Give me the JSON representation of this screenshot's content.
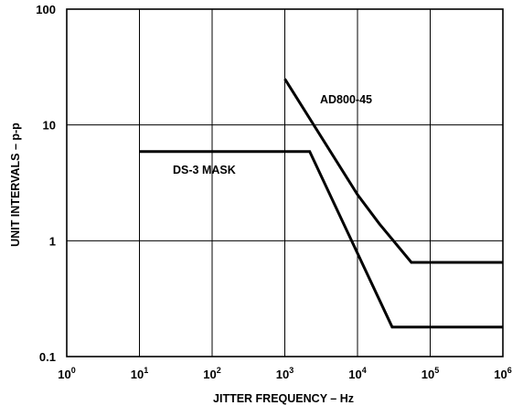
{
  "chart_data": {
    "type": "line",
    "xlabel": "JITTER FREQUENCY – Hz",
    "ylabel": "UNIT INTERVALS – p-p",
    "xscale": "log",
    "yscale": "log",
    "xlim": [
      1,
      1000000
    ],
    "ylim": [
      0.1,
      100
    ],
    "grid": true,
    "x_ticks": [
      {
        "base": "10",
        "exp": "0"
      },
      {
        "base": "10",
        "exp": "1"
      },
      {
        "base": "10",
        "exp": "2"
      },
      {
        "base": "10",
        "exp": "3"
      },
      {
        "base": "10",
        "exp": "4"
      },
      {
        "base": "10",
        "exp": "5"
      },
      {
        "base": "10",
        "exp": "6"
      }
    ],
    "y_ticks": [
      "0.1",
      "1",
      "10",
      "100"
    ],
    "series": [
      {
        "name": "AD800-45",
        "points": [
          [
            1000,
            25
          ],
          [
            10000,
            2.5
          ],
          [
            20000,
            1.4
          ],
          [
            55000,
            0.65
          ],
          [
            1000000,
            0.65
          ]
        ]
      },
      {
        "name": "DS-3 MASK",
        "points": [
          [
            10,
            5.9
          ],
          [
            2200,
            5.9
          ],
          [
            30000,
            0.18
          ],
          [
            1000000,
            0.18
          ]
        ]
      }
    ]
  }
}
